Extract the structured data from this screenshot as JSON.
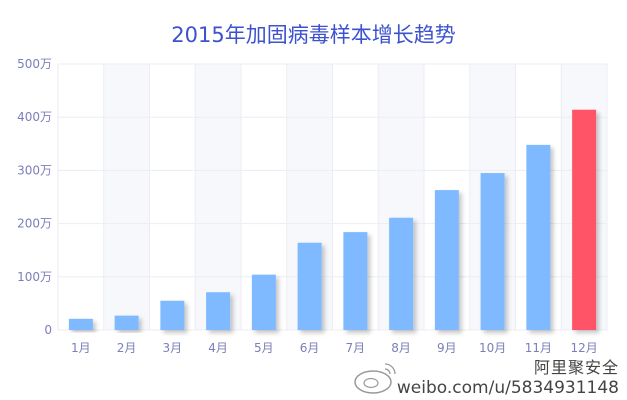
{
  "chart_data": {
    "type": "bar",
    "title": "2015年加固病毒样本增长趋势",
    "categories": [
      "1月",
      "2月",
      "3月",
      "4月",
      "5月",
      "6月",
      "7月",
      "8月",
      "9月",
      "10月",
      "11月",
      "12月"
    ],
    "values": [
      21,
      27,
      55,
      71,
      104,
      164,
      184,
      211,
      263,
      295,
      348,
      414
    ],
    "unit": "万",
    "ylim": [
      0,
      500
    ],
    "yticks": [
      "0",
      "100万",
      "200万",
      "300万",
      "400万",
      "500万"
    ],
    "grid": true,
    "legend": "none",
    "colors": {
      "bar": "#7fb9ff",
      "highlight": "#ff5368",
      "title": "#3d52cf",
      "tick": "#7b7fb8",
      "band": "#f7f8fb",
      "grid": "#ecedf4"
    },
    "highlight_index": 11
  },
  "watermark": {
    "name": "阿里聚安全",
    "url": "weibo.com/u/5834931148"
  }
}
